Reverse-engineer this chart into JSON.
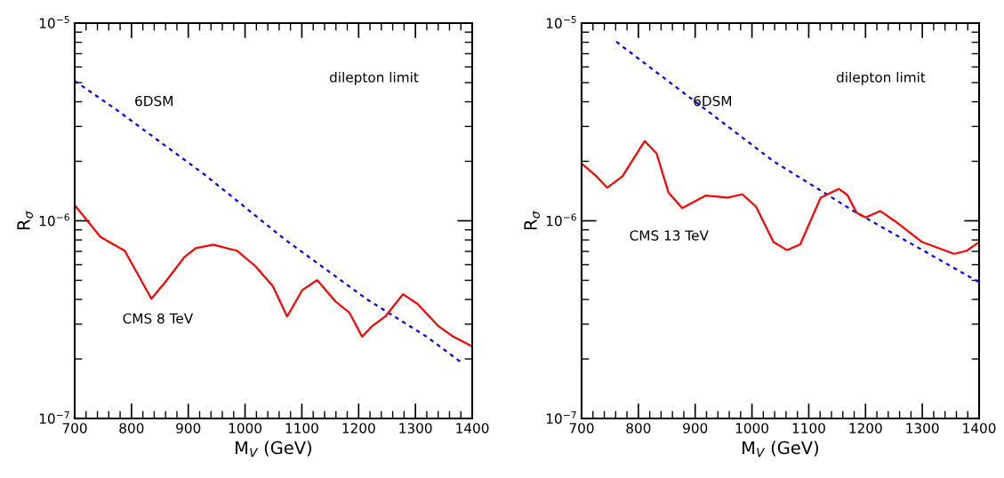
{
  "chart_data": [
    {
      "type": "line",
      "xlabel": "M$_{V}$ (GeV)",
      "ylabel": "R$_{σ}$",
      "log": "y",
      "xlim": [
        700,
        1400
      ],
      "ylim": [
        1e-07,
        1e-05
      ],
      "xticks": [
        700,
        800,
        900,
        1000,
        1100,
        1200,
        1300,
        1400
      ],
      "yticks": [
        {
          "value": 1e-07,
          "label": "10$^{−7}$"
        },
        {
          "value": 1e-06,
          "label": "10$^{−6}$"
        },
        {
          "value": 1e-05,
          "label": "10$^{−5}$"
        }
      ],
      "grid": false,
      "legend": false,
      "annotations": [
        "dilepton limit"
      ],
      "series": [
        {
          "name": "6DSM",
          "color": "#0000ff",
          "line_style": "dotted",
          "x": [
            700,
            772,
            929,
            1070,
            1215,
            1320,
            1383
          ],
          "values": [
            5.1e-06,
            3.67e-06,
            1.71e-06,
            8.05e-07,
            4e-07,
            2.59e-07,
            1.9e-07
          ]
        },
        {
          "name": "CMS 8 TeV",
          "color": "#ff0000",
          "line_style": "solid",
          "x": [
            700,
            745,
            761,
            788,
            803,
            835,
            861,
            893,
            913,
            944,
            986,
            1018,
            1049,
            1074,
            1101,
            1127,
            1159,
            1184,
            1206,
            1223,
            1247,
            1278,
            1304,
            1341,
            1367,
            1400
          ],
          "values": [
            1.2e-06,
            8.3e-07,
            7.8e-07,
            7.05e-07,
            5.9e-07,
            4.03e-07,
            4.96e-07,
            6.55e-07,
            7.26e-07,
            7.57e-07,
            7.05e-07,
            5.9e-07,
            4.66e-07,
            3.28e-07,
            4.47e-07,
            5.01e-07,
            3.91e-07,
            3.42e-07,
            2.59e-07,
            2.92e-07,
            3.28e-07,
            4.25e-07,
            3.79e-07,
            2.92e-07,
            2.59e-07,
            2.31e-07
          ]
        }
      ]
    },
    {
      "type": "line",
      "xlabel": "M$_{V}$ (GeV)",
      "ylabel": "R$_{σ}$",
      "log": "y",
      "xlim": [
        700,
        1400
      ],
      "ylim": [
        1e-07,
        1e-05
      ],
      "xticks": [
        700,
        800,
        900,
        1000,
        1100,
        1200,
        1300,
        1400
      ],
      "yticks": [
        {
          "value": 1e-07,
          "label": "10$^{−7}$"
        },
        {
          "value": 1e-06,
          "label": "10$^{−6}$"
        },
        {
          "value": 1e-05,
          "label": "10$^{−5}$"
        }
      ],
      "grid": false,
      "legend": false,
      "annotations": [
        "dilepton limit"
      ],
      "series": [
        {
          "name": "6DSM",
          "color": "#0000ff",
          "line_style": "dotted",
          "x": [
            761,
            897,
            1038,
            1179,
            1394,
            1400
          ],
          "values": [
            8.05e-06,
            4.07e-06,
            2e-06,
            1.12e-06,
            5e-07,
            4.9e-07
          ]
        },
        {
          "name": "CMS 13 TeV",
          "color": "#ff0000",
          "line_style": "solid",
          "x": [
            700,
            725,
            745,
            772,
            811,
            832,
            853,
            877,
            918,
            957,
            983,
            1007,
            1038,
            1062,
            1085,
            1121,
            1153,
            1168,
            1184,
            1200,
            1226,
            1253,
            1300,
            1356,
            1378,
            1400
          ],
          "values": [
            1.95e-06,
            1.69e-06,
            1.47e-06,
            1.68e-06,
            2.53e-06,
            2.19e-06,
            1.39e-06,
            1.16e-06,
            1.34e-06,
            1.31e-06,
            1.36e-06,
            1.18e-06,
            7.8e-07,
            7.1e-07,
            7.6e-07,
            1.31e-06,
            1.45e-06,
            1.35e-06,
            1.1e-06,
            1.04e-06,
            1.12e-06,
            9.9e-07,
            7.8e-07,
            6.8e-07,
            7.05e-07,
            7.8e-07
          ]
        }
      ]
    }
  ]
}
